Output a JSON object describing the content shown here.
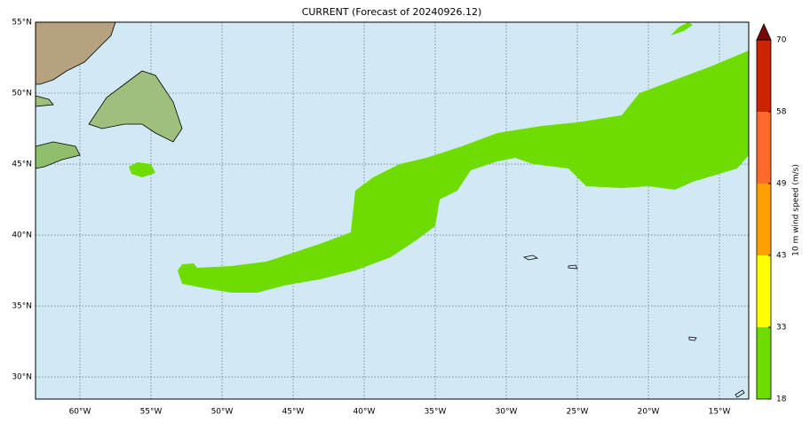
{
  "map": {
    "title": "CURRENT (Forecast of 20240926.12)",
    "xlim": [
      -63.125,
      -12.94
    ],
    "ylim": [
      28.44,
      55
    ],
    "xticks": [
      {
        "value": -60,
        "label": "60°W"
      },
      {
        "value": -55,
        "label": "55°W"
      },
      {
        "value": -50,
        "label": "50°W"
      },
      {
        "value": -45,
        "label": "45°W"
      },
      {
        "value": -40,
        "label": "40°W"
      },
      {
        "value": -35,
        "label": "35°W"
      },
      {
        "value": -30,
        "label": "30°W"
      },
      {
        "value": -25,
        "label": "25°W"
      },
      {
        "value": -20,
        "label": "20°W"
      },
      {
        "value": -15,
        "label": "15°W"
      }
    ],
    "yticks": [
      {
        "value": 30,
        "label": "30°N"
      },
      {
        "value": 35,
        "label": "35°N"
      },
      {
        "value": 40,
        "label": "40°N"
      },
      {
        "value": 45,
        "label": "45°N"
      },
      {
        "value": 50,
        "label": "50°N"
      },
      {
        "value": 55,
        "label": "55°N"
      }
    ],
    "colorbar": {
      "label": "10 m wind speed (m/s)",
      "levels": [
        18,
        33,
        43,
        49,
        58,
        70
      ],
      "colors": [
        "#6fdc00",
        "#ffff00",
        "#ffa000",
        "#ff6a2a",
        "#cc2400"
      ],
      "extend_color": "#7a0a0a"
    }
  }
}
